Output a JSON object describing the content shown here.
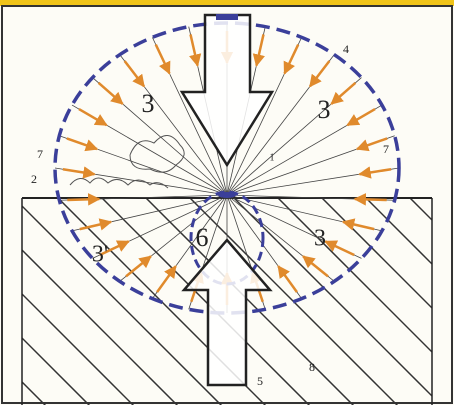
{
  "labels": [
    "3",
    "3",
    "3'",
    "3",
    "6",
    "4",
    "7",
    "7",
    "2",
    "1",
    "5",
    "8"
  ]
}
